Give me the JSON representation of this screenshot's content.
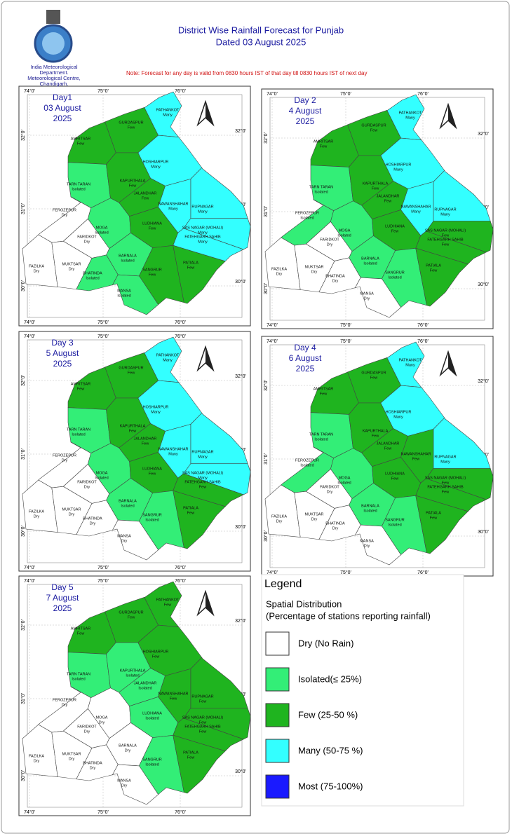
{
  "header": {
    "org": "India Meteorological Department. Meteorological Centre, Chandigarh.",
    "title": "District Wise Rainfall Forecast for Punjab",
    "subtitle": "Dated 03 August 2025",
    "note": "Note: Forecast for any day is valid from 0830 hours IST of that day till 0830 hours IST of next day"
  },
  "grid": {
    "lon": [
      "74°0'",
      "75°0'",
      "76°0'"
    ],
    "lat": [
      "32°0'",
      "31°0'",
      "30°0'"
    ]
  },
  "districts": [
    "PATHANKOT",
    "GURDASPUR",
    "AMRITSAR",
    "HOSHIARPUR",
    "TARN TARAN",
    "KAPURTHALA",
    "JALANDHAR",
    "NAWANSHAHAR",
    "RUPNAGAR",
    "FEROZEPUR",
    "MOGA",
    "LUDHIANA",
    "SAS NAGAR (MOHALI)",
    "FATEHGARH SAHIB",
    "FARIDKOT",
    "FAZILKA",
    "MUKTSAR",
    "BARNALA",
    "BHATINDA",
    "SANGRUR",
    "PATIALA",
    "MANSA"
  ],
  "days": [
    {
      "day": "Day1",
      "date": "03 August",
      "year": "2025",
      "categories": [
        "Many",
        "Few",
        "Few",
        "Many",
        "Isolated",
        "Few",
        "Few",
        "Many",
        "Many",
        "Dry",
        "Isolated",
        "Few",
        "Many",
        "Many",
        "Dry",
        "Dry",
        "Dry",
        "Isolated",
        "Isolated",
        "Few",
        "Few",
        "Isolated"
      ]
    },
    {
      "day": "Day 2",
      "date": "4 August",
      "year": "2025",
      "categories": [
        "Many",
        "Few",
        "Few",
        "Many",
        "Isolated",
        "Few",
        "Few",
        "Many",
        "Many",
        "Isolated",
        "Isolated",
        "Few",
        "Few",
        "Few",
        "Dry",
        "Dry",
        "Dry",
        "Isolated",
        "Dry",
        "Isolated",
        "Few",
        "Dry"
      ]
    },
    {
      "day": "Day 3",
      "date": "5 August",
      "year": "2025",
      "categories": [
        "Many",
        "Few",
        "Few",
        "Many",
        "Isolated",
        "Few",
        "Few",
        "Many",
        "Many",
        "Dry",
        "Isolated",
        "Few",
        "Many",
        "Few",
        "Dry",
        "Dry",
        "Dry",
        "Isolated",
        "Dry",
        "Isolated",
        "Few",
        "Dry"
      ]
    },
    {
      "day": "Day 4",
      "date": "6 August",
      "year": "2025",
      "categories": [
        "Many",
        "Few",
        "Few",
        "Many",
        "Isolated",
        "Few",
        "Few",
        "Few",
        "Many",
        "Isolated",
        "Isolated",
        "Few",
        "Few",
        "Few",
        "Dry",
        "Dry",
        "Dry",
        "Isolated",
        "Dry",
        "Isolated",
        "Few",
        "Dry"
      ]
    },
    {
      "day": "Day 5",
      "date": "7 August",
      "year": "2025",
      "categories": [
        "Few",
        "Few",
        "Few",
        "Few",
        "Isolated",
        "Isolated",
        "Isolated",
        "Few",
        "Few",
        "Dry",
        "Dry",
        "Isolated",
        "Few",
        "Few",
        "Dry",
        "Dry",
        "Dry",
        "Dry",
        "Dry",
        "Isolated",
        "Few",
        "Dry"
      ]
    }
  ],
  "legend": {
    "title": "Legend",
    "subtitle": "Spatial Distribution",
    "subtitle2": "(Percentage of stations reporting rainfall)",
    "items": [
      {
        "label": "Dry (No Rain)",
        "color": "#ffffff"
      },
      {
        "label": "Isolated(≤ 25%)",
        "color": "#33ee77"
      },
      {
        "label": "Few (25-50 %)",
        "color": "#1fb41f"
      },
      {
        "label": "Many (50-75 %)",
        "color": "#33ffff"
      },
      {
        "label": "Most (75-100%)",
        "color": "#1a1aff"
      }
    ]
  }
}
